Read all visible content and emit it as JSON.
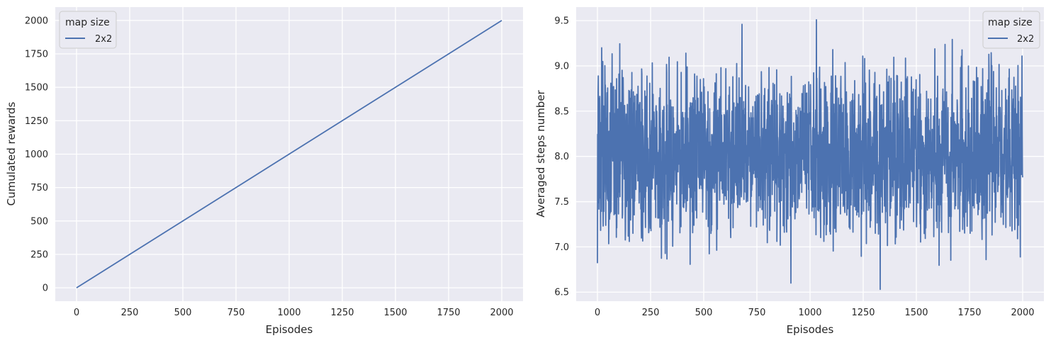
{
  "chart_data": [
    {
      "type": "line",
      "xlabel": "Episodes",
      "ylabel": "Cumulated rewards",
      "xlim": [
        -100,
        2100
      ],
      "ylim": [
        -100,
        2100
      ],
      "xticks": [
        0,
        250,
        500,
        750,
        1000,
        1250,
        1500,
        1750,
        2000
      ],
      "yticks": [
        0,
        250,
        500,
        750,
        1000,
        1250,
        1500,
        1750,
        2000
      ],
      "legend": {
        "title": "map size",
        "position": "top-left"
      },
      "series": [
        {
          "name": "2x2",
          "color": "#4c72b0",
          "x": [
            0,
            2000
          ],
          "y": [
            0,
            2000
          ]
        }
      ],
      "grid": true
    },
    {
      "type": "line",
      "xlabel": "Episodes",
      "ylabel": "Averaged steps number",
      "xlim": [
        -100,
        2100
      ],
      "ylim": [
        6.4,
        9.65
      ],
      "xticks": [
        0,
        250,
        500,
        750,
        1000,
        1250,
        1500,
        1750,
        2000
      ],
      "yticks": [
        6.5,
        7.0,
        7.5,
        8.0,
        8.5,
        9.0,
        9.5
      ],
      "legend": {
        "title": "map size",
        "position": "top-right"
      },
      "series": [
        {
          "name": "2x2",
          "color": "#4c72b0",
          "description": "noisy series around 8.0 over 2000 episodes",
          "mean": 8.0,
          "range_min": 6.53,
          "range_max": 9.51,
          "x_start": 0,
          "x_end": 2000,
          "notable_points": [
            {
              "x": 0,
              "y": 6.82
            },
            {
              "x": 20,
              "y": 9.2
            },
            {
              "x": 680,
              "y": 9.46
            },
            {
              "x": 910,
              "y": 6.6
            },
            {
              "x": 1030,
              "y": 9.51
            },
            {
              "x": 1330,
              "y": 6.53
            }
          ]
        }
      ],
      "grid": true
    }
  ]
}
